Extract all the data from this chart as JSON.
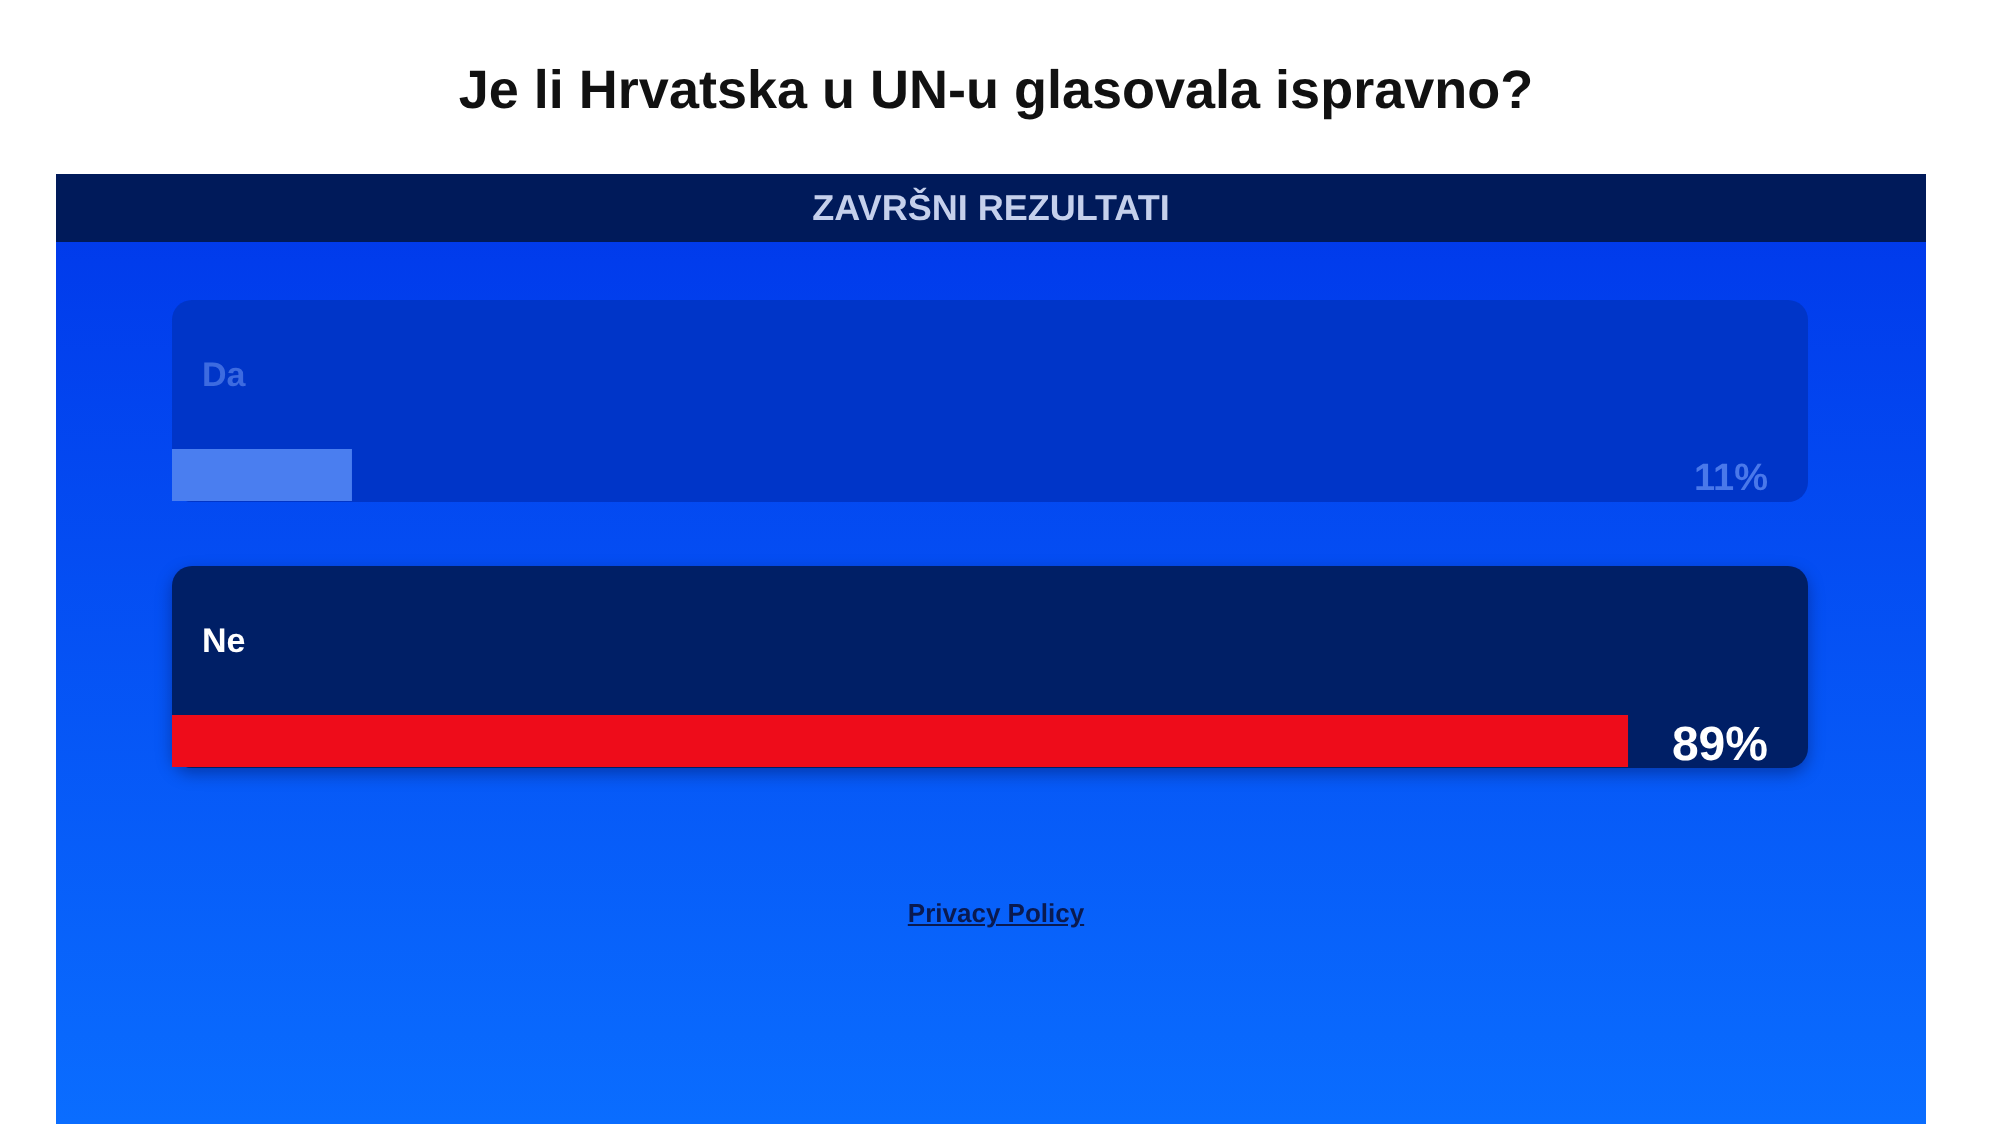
{
  "chart_data": {
    "type": "bar",
    "title": "Je li Hrvatska u UN-u glasovala ispravno?",
    "subtitle": "ZAVRŠNI REZULTATI",
    "orientation": "horizontal",
    "categories": [
      "Da",
      "Ne"
    ],
    "values": [
      11,
      89
    ],
    "colors": [
      "#4a7ef0",
      "#ee0c1a"
    ],
    "value_labels": [
      "11%",
      "89%"
    ],
    "xlim": [
      0,
      100
    ],
    "tick_labels": "y",
    "annotations": [
      "Privacy Policy"
    ]
  }
}
